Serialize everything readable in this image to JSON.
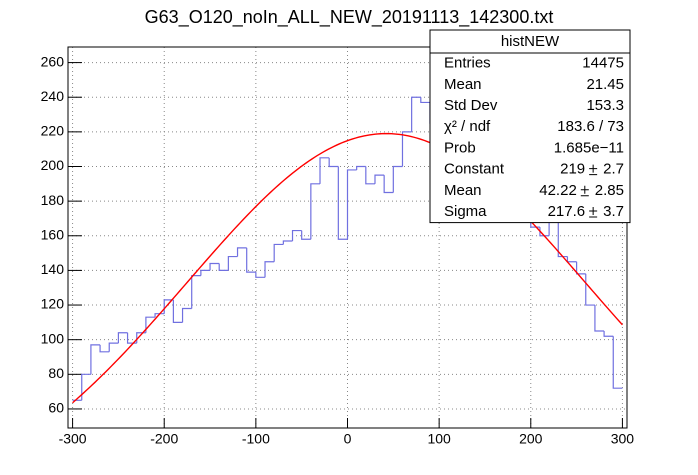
{
  "chart_data": {
    "type": "histogram",
    "title": "G63_O120_noIn_ALL_NEW_20191113_142300.txt",
    "bins": [
      -300,
      -290,
      -280,
      -270,
      -260,
      -250,
      -240,
      -230,
      -220,
      -210,
      -200,
      -190,
      -180,
      -170,
      -160,
      -150,
      -140,
      -130,
      -120,
      -110,
      -100,
      -90,
      -80,
      -70,
      -60,
      -50,
      -40,
      -30,
      -20,
      -10,
      0,
      10,
      20,
      30,
      40,
      50,
      60,
      70,
      80,
      90,
      100,
      110,
      120,
      130,
      140,
      150,
      160,
      170,
      180,
      190,
      200,
      210,
      220,
      230,
      240,
      250,
      260,
      270,
      280,
      290,
      300
    ],
    "values": [
      65,
      80,
      97,
      93,
      98,
      104,
      98,
      104,
      113,
      115,
      123,
      110,
      118,
      137,
      140,
      144,
      140,
      148,
      153,
      139,
      136,
      145,
      155,
      157,
      163,
      158,
      190,
      205,
      200,
      158,
      198,
      200,
      190,
      195,
      185,
      200,
      220,
      240,
      237,
      225,
      252,
      235,
      230,
      225,
      220,
      215,
      210,
      205,
      195,
      170,
      165,
      160,
      172,
      148,
      145,
      138,
      120,
      105,
      102,
      72
    ],
    "color": "#7070e0",
    "xlim": [
      -305,
      305
    ],
    "ylim": [
      49,
      269
    ],
    "xticks": [
      -300,
      -200,
      -100,
      0,
      100,
      200,
      300
    ],
    "yticks": [
      60,
      80,
      100,
      120,
      140,
      160,
      180,
      200,
      220,
      240,
      260
    ],
    "grid": true,
    "fit": {
      "color": "#ff0000",
      "params": [
        {
          "name": "Constant",
          "value": 219,
          "error": 2.7
        },
        {
          "name": "Mean",
          "value": 42.22,
          "error": 2.85
        },
        {
          "name": "Sigma",
          "value": 217.6,
          "error": 3.7
        }
      ]
    },
    "stats": {
      "title": "histNEW",
      "rows": [
        {
          "label": "Entries",
          "value": 14475
        },
        {
          "label": "Mean",
          "value": 21.45
        },
        {
          "label": "Std Dev",
          "value": 153.3
        },
        {
          "label": "χ² / ndf",
          "value": "183.6 / 73"
        },
        {
          "label": "Prob",
          "value": "1.685e−11"
        }
      ]
    }
  }
}
